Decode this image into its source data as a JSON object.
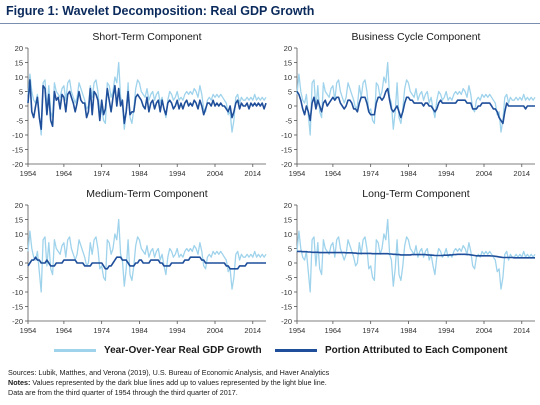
{
  "figure": {
    "title": "Figure 1: Wavelet Decomposition: Real GDP Growth"
  },
  "colors": {
    "light_series": "#9fd3ec",
    "dark_series": "#1f4f9a",
    "axis": "#555555",
    "title_text": "#0b2a5c"
  },
  "legend": {
    "light_label": "Year-Over-Year Real GDP Growth",
    "dark_label": "Portion Attributed to Each Component"
  },
  "notes": {
    "sources": "Sources: Lubik, Matthes, and Verona (2019), U.S. Bureau of Economic Analysis, and Haver Analytics",
    "notes_label": "Notes:",
    "notes_text": " Values represented by the dark blue lines add up to values represented by the light blue line.",
    "data_text": "Data are from the third quarter of 1954 through the third quarter of 2017."
  },
  "chart_data": [
    {
      "type": "line",
      "title": "Short-Term Component",
      "x_range": [
        1954.5,
        2017.5
      ],
      "x_ticks": [
        "1954",
        "1964",
        "1974",
        "1984",
        "1994",
        "2004",
        "2014"
      ],
      "x_tick_values": [
        1954,
        1964,
        1974,
        1984,
        1994,
        2004,
        2014
      ],
      "ylim": [
        -20,
        20
      ],
      "y_ticks": [
        -20,
        -15,
        -10,
        -5,
        0,
        5,
        10,
        15,
        20
      ],
      "series": [
        {
          "name": "Year-Over-Year Real GDP Growth",
          "points": "gdp"
        },
        {
          "name": "Portion Attributed to Each Component",
          "points": "short"
        }
      ]
    },
    {
      "type": "line",
      "title": "Business Cycle Component",
      "x_range": [
        1954.5,
        2017.5
      ],
      "x_ticks": [
        "1954",
        "1964",
        "1974",
        "1984",
        "1994",
        "2004",
        "2014"
      ],
      "x_tick_values": [
        1954,
        1964,
        1974,
        1984,
        1994,
        2004,
        2014
      ],
      "ylim": [
        -20,
        20
      ],
      "y_ticks": [
        -20,
        -15,
        -10,
        -5,
        0,
        5,
        10,
        15,
        20
      ],
      "series": [
        {
          "name": "Year-Over-Year Real GDP Growth",
          "points": "gdp"
        },
        {
          "name": "Portion Attributed to Each Component",
          "points": "business"
        }
      ]
    },
    {
      "type": "line",
      "title": "Medium-Term Component",
      "x_range": [
        1954.5,
        2017.5
      ],
      "x_ticks": [
        "1954",
        "1964",
        "1974",
        "1984",
        "1994",
        "2004",
        "2014"
      ],
      "x_tick_values": [
        1954,
        1964,
        1974,
        1984,
        1994,
        2004,
        2014
      ],
      "ylim": [
        -20,
        20
      ],
      "y_ticks": [
        -20,
        -15,
        -10,
        -5,
        0,
        5,
        10,
        15,
        20
      ],
      "series": [
        {
          "name": "Year-Over-Year Real GDP Growth",
          "points": "gdp"
        },
        {
          "name": "Portion Attributed to Each Component",
          "points": "medium"
        }
      ]
    },
    {
      "type": "line",
      "title": "Long-Term Component",
      "x_range": [
        1954.5,
        2017.5
      ],
      "x_ticks": [
        "1954",
        "1964",
        "1974",
        "1984",
        "1994",
        "2004",
        "2014"
      ],
      "x_tick_values": [
        1954,
        1964,
        1974,
        1984,
        1994,
        2004,
        2014
      ],
      "ylim": [
        -20,
        20
      ],
      "y_ticks": [
        -20,
        -15,
        -10,
        -5,
        0,
        5,
        10,
        15,
        20
      ],
      "series": [
        {
          "name": "Year-Over-Year Real GDP Growth",
          "points": "gdp"
        },
        {
          "name": "Portion Attributed to Each Component",
          "points": "long"
        }
      ]
    }
  ],
  "series_values": {
    "x": [
      1954.5,
      1955,
      1955.5,
      1956,
      1956.5,
      1957,
      1957.5,
      1958,
      1958.5,
      1959,
      1959.5,
      1960,
      1960.5,
      1961,
      1961.5,
      1962,
      1962.5,
      1963,
      1963.5,
      1964,
      1964.5,
      1965,
      1965.5,
      1966,
      1966.5,
      1967,
      1967.5,
      1968,
      1968.5,
      1969,
      1969.5,
      1970,
      1970.5,
      1971,
      1971.5,
      1972,
      1972.5,
      1973,
      1973.5,
      1974,
      1974.5,
      1975,
      1975.5,
      1976,
      1976.5,
      1977,
      1977.5,
      1978,
      1978.5,
      1979,
      1979.5,
      1980,
      1980.5,
      1981,
      1981.5,
      1982,
      1982.5,
      1983,
      1983.5,
      1984,
      1984.5,
      1985,
      1985.5,
      1986,
      1986.5,
      1987,
      1987.5,
      1988,
      1988.5,
      1989,
      1989.5,
      1990,
      1990.5,
      1991,
      1991.5,
      1992,
      1992.5,
      1993,
      1993.5,
      1994,
      1994.5,
      1995,
      1995.5,
      1996,
      1996.5,
      1997,
      1997.5,
      1998,
      1998.5,
      1999,
      1999.5,
      2000,
      2000.5,
      2001,
      2001.5,
      2002,
      2002.5,
      2003,
      2003.5,
      2004,
      2004.5,
      2005,
      2005.5,
      2006,
      2006.5,
      2007,
      2007.5,
      2008,
      2008.5,
      2009,
      2009.5,
      2010,
      2010.5,
      2011,
      2011.5,
      2012,
      2012.5,
      2013,
      2013.5,
      2014,
      2014.5,
      2015,
      2015.5,
      2016,
      2016.5,
      2017,
      2017.5
    ],
    "gdp": [
      4,
      11,
      5,
      2,
      1,
      4,
      -3,
      -10,
      8,
      9,
      -1,
      7,
      -2,
      -4,
      8,
      5,
      4,
      3,
      6,
      7,
      2,
      8,
      9,
      5,
      3,
      1,
      3,
      8,
      6,
      4,
      2,
      -1,
      0,
      7,
      3,
      8,
      9,
      5,
      -2,
      -1,
      -5,
      -6,
      8,
      7,
      3,
      5,
      10,
      8,
      15,
      3,
      1,
      -8,
      -2,
      8,
      -4,
      -6,
      -1,
      6,
      9,
      8,
      5,
      4,
      3,
      6,
      2,
      4,
      5,
      2,
      4,
      5,
      1,
      3,
      -1,
      -4,
      2,
      5,
      4,
      2,
      3,
      5,
      2,
      3,
      2,
      4,
      5,
      4,
      5,
      4,
      6,
      5,
      3,
      7,
      4,
      -1,
      -2,
      2,
      3,
      2,
      4,
      3,
      4,
      3,
      4,
      3,
      2,
      1,
      -3,
      -2,
      -9,
      -5,
      3,
      4,
      1,
      3,
      2,
      2,
      3,
      2,
      3,
      2,
      4,
      2,
      3,
      2,
      3,
      2,
      3
    ],
    "short": [
      1,
      9,
      -2,
      -4,
      0,
      3,
      -4,
      -8,
      7,
      6,
      -3,
      4,
      -5,
      -7,
      5,
      2,
      3,
      -1,
      4,
      3,
      -2,
      4,
      5,
      3,
      1,
      -2,
      1,
      5,
      2,
      1,
      1,
      -4,
      -2,
      6,
      -3,
      5,
      4,
      2,
      -5,
      2,
      -3,
      -1,
      6,
      2,
      -2,
      3,
      7,
      0,
      6,
      0,
      2,
      -6,
      -2,
      5,
      -3,
      -2,
      -2,
      3,
      4,
      3,
      2,
      0,
      -1,
      3,
      -2,
      1,
      2,
      -1,
      1,
      2,
      -2,
      2,
      -1,
      -3,
      1,
      2,
      1,
      -1,
      0,
      2,
      -1,
      1,
      -1,
      1,
      2,
      0,
      1,
      0,
      2,
      1,
      -1,
      2,
      0,
      -3,
      -1,
      1,
      1,
      0,
      2,
      0,
      1,
      0,
      1,
      0,
      0,
      -1,
      -2,
      0,
      -4,
      -2,
      1,
      2,
      -1,
      1,
      0,
      0,
      1,
      -1,
      1,
      0,
      1,
      0,
      1,
      0,
      1,
      -1,
      1
    ],
    "business": [
      5,
      4,
      2,
      -1,
      -3,
      0,
      -2,
      -5,
      1,
      3,
      -1,
      2,
      0,
      -2,
      1,
      2,
      0,
      1,
      2,
      3,
      2,
      3,
      3,
      1,
      0,
      -1,
      0,
      2,
      2,
      1,
      -1,
      -1,
      -2,
      1,
      3,
      3,
      3,
      1,
      -2,
      -3,
      -3,
      -3,
      1,
      3,
      3,
      2,
      3,
      5,
      6,
      2,
      -1,
      -2,
      -1,
      0,
      -2,
      -4,
      -2,
      1,
      3,
      3,
      2,
      2,
      1,
      1,
      1,
      1,
      1,
      0,
      1,
      1,
      0,
      0,
      -1,
      -2,
      -1,
      1,
      2,
      1,
      1,
      1,
      1,
      1,
      1,
      1,
      1,
      2,
      2,
      2,
      2,
      2,
      1,
      1,
      1,
      -1,
      -1,
      -1,
      0,
      0,
      1,
      1,
      1,
      1,
      1,
      0,
      -1,
      -1,
      -2,
      -4,
      -5,
      -6,
      -2,
      1,
      0,
      0,
      0,
      0,
      0,
      0,
      0,
      0,
      0,
      -1,
      0,
      0,
      0,
      0,
      0
    ],
    "medium": [
      -1,
      0,
      1,
      1,
      2,
      1,
      1,
      0,
      0,
      0,
      1,
      0,
      -1,
      -1,
      -1,
      0,
      0,
      0,
      0,
      1,
      1,
      1,
      1,
      1,
      1,
      1,
      0,
      0,
      0,
      0,
      -1,
      -1,
      -1,
      -1,
      0,
      0,
      0,
      0,
      0,
      0,
      -1,
      -2,
      -2,
      -1,
      -1,
      0,
      1,
      2,
      2,
      2,
      1,
      1,
      1,
      0,
      -1,
      -1,
      -1,
      0,
      0,
      1,
      1,
      0,
      0,
      0,
      0,
      1,
      1,
      1,
      1,
      1,
      0,
      0,
      -1,
      -1,
      -1,
      -1,
      0,
      0,
      0,
      0,
      0,
      0,
      0,
      1,
      1,
      1,
      2,
      2,
      2,
      2,
      2,
      2,
      1,
      1,
      0,
      0,
      0,
      0,
      0,
      0,
      0,
      0,
      0,
      0,
      0,
      -1,
      -1,
      -2,
      -2,
      -2,
      -2,
      -2,
      -1,
      -1,
      -1,
      -1,
      0,
      0,
      0,
      0,
      0,
      0,
      0,
      0,
      0,
      0,
      0
    ],
    "long": [
      4.0,
      4.0,
      4.0,
      3.9,
      3.9,
      3.9,
      3.8,
      3.8,
      3.7,
      3.7,
      3.7,
      3.7,
      3.6,
      3.6,
      3.6,
      3.6,
      3.6,
      3.6,
      3.6,
      3.6,
      3.6,
      3.6,
      3.6,
      3.6,
      3.6,
      3.6,
      3.5,
      3.5,
      3.5,
      3.5,
      3.4,
      3.4,
      3.3,
      3.3,
      3.3,
      3.3,
      3.3,
      3.3,
      3.3,
      3.3,
      3.2,
      3.2,
      3.2,
      3.2,
      3.2,
      3.2,
      3.2,
      3.2,
      3.2,
      3.1,
      3.1,
      3.0,
      3.0,
      2.9,
      2.9,
      2.8,
      2.8,
      2.8,
      2.8,
      2.8,
      2.8,
      2.9,
      2.9,
      2.9,
      2.9,
      2.9,
      2.9,
      2.9,
      2.9,
      2.8,
      2.8,
      2.7,
      2.7,
      2.6,
      2.6,
      2.6,
      2.6,
      2.6,
      2.7,
      2.7,
      2.7,
      2.8,
      2.8,
      2.9,
      2.9,
      3.0,
      3.0,
      3.0,
      3.0,
      3.0,
      2.9,
      2.9,
      2.8,
      2.7,
      2.6,
      2.5,
      2.5,
      2.5,
      2.5,
      2.5,
      2.5,
      2.5,
      2.5,
      2.4,
      2.4,
      2.3,
      2.2,
      2.1,
      2.0,
      1.9,
      1.9,
      1.9,
      1.9,
      1.9,
      1.9,
      1.8,
      1.8,
      1.8,
      1.8,
      1.8,
      1.8,
      1.8,
      1.8,
      1.8,
      1.8,
      1.8,
      1.8
    ]
  }
}
